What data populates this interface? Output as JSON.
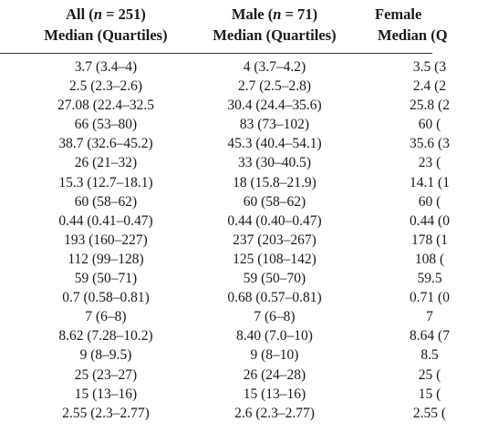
{
  "table": {
    "columns": [
      {
        "group_prefix": "All (",
        "n_symbol": "n",
        "group_suffix": " = 251)",
        "stat_label": "Median (Quartiles)"
      },
      {
        "group_prefix": "Male (",
        "n_symbol": "n",
        "group_suffix": " = 71)",
        "stat_label": "Median (Quartiles)"
      },
      {
        "group_prefix": "Female",
        "n_symbol": "",
        "group_suffix": "",
        "stat_label": "Median (Q"
      }
    ],
    "rows": [
      [
        "3.7 (3.4–4)",
        "4 (3.7–4.2)",
        "3.5 (3"
      ],
      [
        "2.5 (2.3–2.6)",
        "2.7 (2.5–2.8)",
        "2.4 (2"
      ],
      [
        "27.08 (22.4–32.5",
        "30.4 (24.4–35.6)",
        "25.8 (2"
      ],
      [
        "66 (53–80)",
        "83 (73–102)",
        "60 ("
      ],
      [
        "38.7 (32.6–45.2)",
        "45.3 (40.4–54.1)",
        "35.6 (3"
      ],
      [
        "26 (21–32)",
        "33 (30–40.5)",
        "23 ("
      ],
      [
        "15.3 (12.7–18.1)",
        "18 (15.8–21.9)",
        "14.1 (1"
      ],
      [
        "60 (58–62)",
        "60 (58–62)",
        "60 ("
      ],
      [
        "0.44 (0.41–0.47)",
        "0.44 (0.40–0.47)",
        "0.44 (0"
      ],
      [
        "193 (160–227)",
        "237 (203–267)",
        "178 (1"
      ],
      [
        "112 (99–128)",
        "125 (108–142)",
        "108 ("
      ],
      [
        "59 (50–71)",
        "59 (50–70)",
        "59.5"
      ],
      [
        "0.7 (0.58–0.81)",
        "0.68 (0.57–0.81)",
        "0.71 (0"
      ],
      [
        "7 (6–8)",
        "7 (6–8)",
        "7"
      ],
      [
        "8.62 (7.28–10.2)",
        "8.40 (7.0–10)",
        "8.64 (7"
      ],
      [
        "9 (8–9.5)",
        "9 (8–10)",
        "8.5"
      ],
      [
        "25 (23–27)",
        "26 (24–28)",
        "25 ("
      ],
      [
        "15 (13–16)",
        "15 (13–16)",
        "15 ("
      ],
      [
        "2.55 (2.3–2.77)",
        "2.6 (2.3–2.77)",
        "2.55 ("
      ]
    ]
  }
}
